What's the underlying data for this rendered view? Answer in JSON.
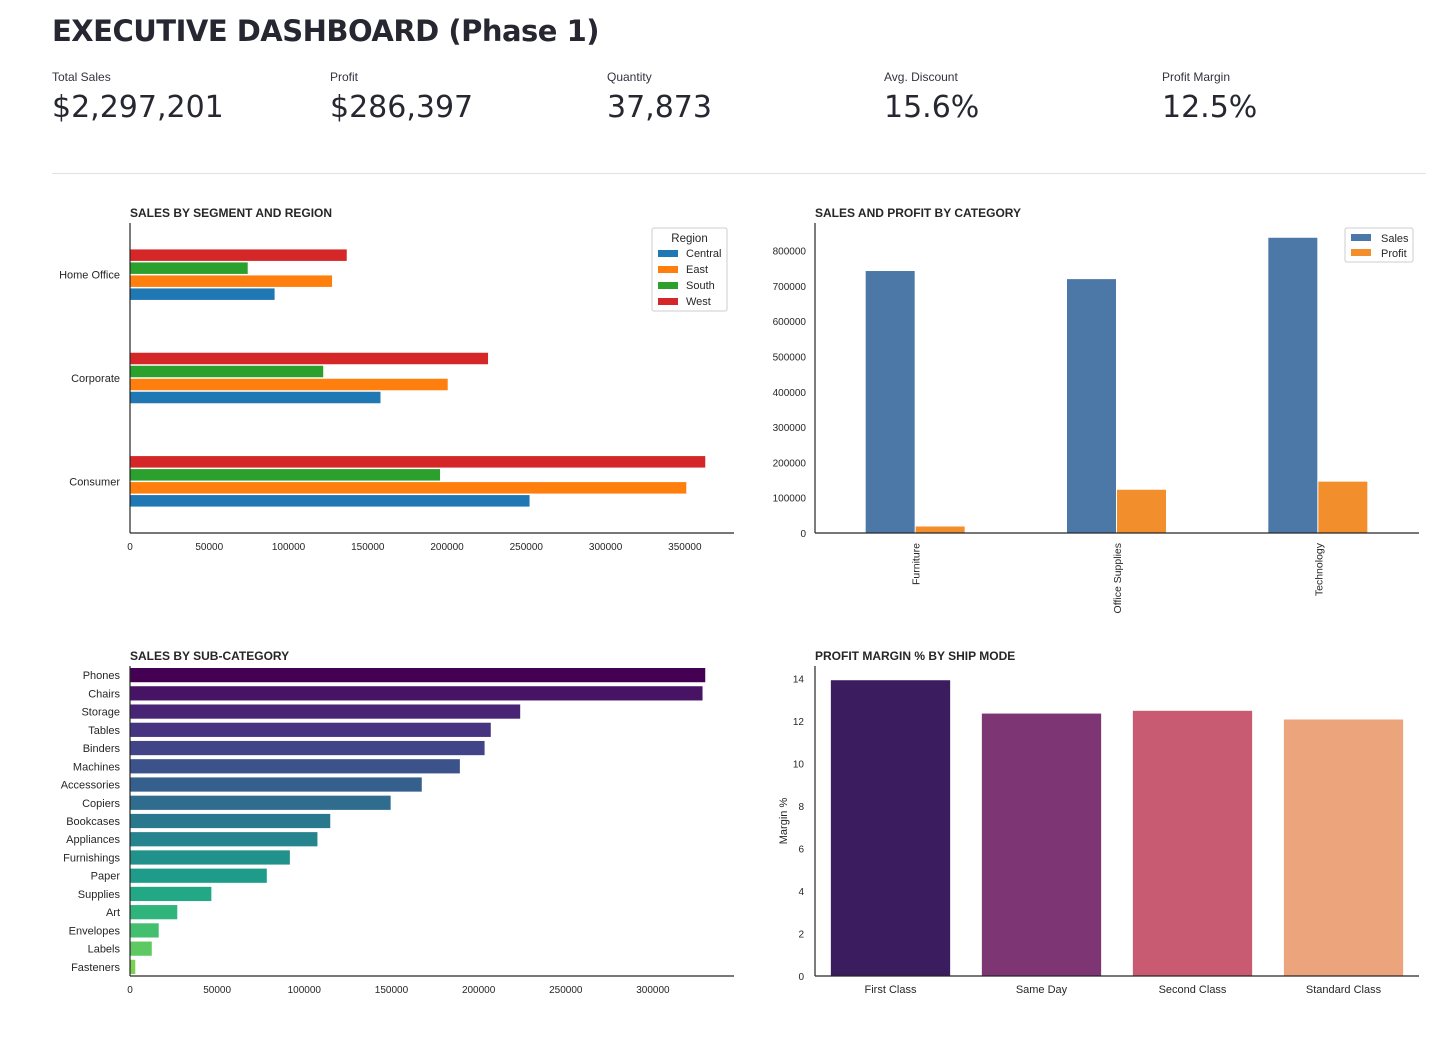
{
  "header": {
    "title": "EXECUTIVE DASHBOARD (Phase 1)"
  },
  "metrics": [
    {
      "label": "Total Sales",
      "value": "$2,297,201"
    },
    {
      "label": "Profit",
      "value": "$286,397"
    },
    {
      "label": "Quantity",
      "value": "37,873"
    },
    {
      "label": "Avg. Discount",
      "value": "15.6%"
    },
    {
      "label": "Profit Margin",
      "value": "12.5%"
    }
  ],
  "chart_data": [
    {
      "id": "segment_region",
      "type": "bar",
      "orientation": "horizontal",
      "title": "SALES BY SEGMENT AND REGION",
      "categories": [
        "Consumer",
        "Corporate",
        "Home Office"
      ],
      "series": [
        {
          "name": "Central",
          "color": "#1f77b4",
          "values": [
            252031,
            157996,
            91213
          ]
        },
        {
          "name": "East",
          "color": "#ff7f0e",
          "values": [
            350908,
            200409,
            127464
          ]
        },
        {
          "name": "South",
          "color": "#2ca02c",
          "values": [
            195581,
            121885,
            74255
          ]
        },
        {
          "name": "West",
          "color": "#d62728",
          "values": [
            362881,
            225855,
            136722
          ]
        }
      ],
      "xticks": [
        0,
        50000,
        100000,
        150000,
        200000,
        250000,
        300000,
        350000
      ],
      "xlim": [
        0,
        381000
      ],
      "legend": {
        "title": "Region",
        "position": "top-right"
      }
    },
    {
      "id": "category",
      "type": "bar",
      "title": "SALES AND PROFIT BY CATEGORY",
      "categories": [
        "Furniture",
        "Office Supplies",
        "Technology"
      ],
      "series": [
        {
          "name": "Sales",
          "color": "#4c78a8",
          "values": [
            741999,
            719047,
            836154
          ]
        },
        {
          "name": "Profit",
          "color": "#f28e2b",
          "values": [
            18451,
            122490,
            145455
          ]
        }
      ],
      "yticks": [
        0,
        100000,
        200000,
        300000,
        400000,
        500000,
        600000,
        700000,
        800000
      ],
      "ylim": [
        0,
        878000
      ],
      "legend": {
        "position": "top-right"
      }
    },
    {
      "id": "subcategory",
      "type": "bar",
      "orientation": "horizontal",
      "title": "SALES BY SUB-CATEGORY",
      "categories": [
        "Phones",
        "Chairs",
        "Storage",
        "Tables",
        "Binders",
        "Machines",
        "Accessories",
        "Copiers",
        "Bookcases",
        "Appliances",
        "Furnishings",
        "Paper",
        "Supplies",
        "Art",
        "Envelopes",
        "Labels",
        "Fasteners"
      ],
      "values": [
        330007,
        328449,
        223844,
        206966,
        203413,
        189239,
        167380,
        149528,
        114880,
        107532,
        91705,
        78479,
        46674,
        27119,
        16476,
        12486,
        3024
      ],
      "colors": [
        "#440154",
        "#471365",
        "#482475",
        "#463480",
        "#414487",
        "#3b528b",
        "#355f8d",
        "#2f6c8e",
        "#2a788e",
        "#25848e",
        "#21918c",
        "#1e9c89",
        "#22a884",
        "#2fb47c",
        "#44bf70",
        "#5ec962",
        "#7ad151"
      ],
      "xticks": [
        0,
        50000,
        100000,
        150000,
        200000,
        250000,
        300000
      ],
      "xlim": [
        0,
        346500
      ]
    },
    {
      "id": "shipmode",
      "type": "bar",
      "title": "PROFIT MARGIN % BY SHIP MODE",
      "ylabel": "Margin %",
      "categories": [
        "First Class",
        "Same Day",
        "Second Class",
        "Standard Class"
      ],
      "values": [
        13.93,
        12.36,
        12.49,
        12.08
      ],
      "colors": [
        "#3b1c5f",
        "#7e3573",
        "#c85a72",
        "#eca47c"
      ],
      "yticks": [
        0,
        2,
        4,
        6,
        8,
        10,
        12,
        14
      ],
      "ylim": [
        0,
        14.6
      ]
    }
  ]
}
